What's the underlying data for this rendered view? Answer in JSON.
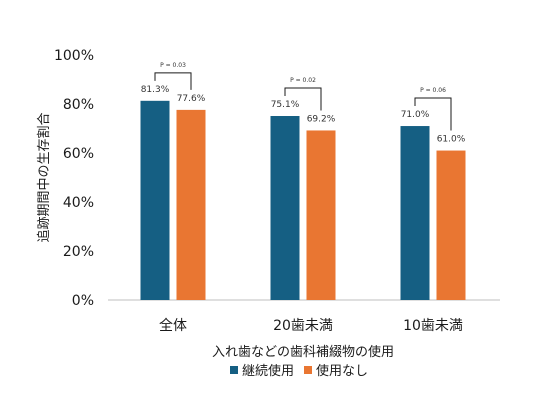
{
  "chart_data": {
    "type": "bar",
    "ylabel": "追跡期間中の生存割合",
    "xlabel": "入れ歯などの歯科補綴物の使用",
    "ylim": [
      0,
      100
    ],
    "y_ticks": [
      "0%",
      "20%",
      "40%",
      "60%",
      "80%",
      "100%"
    ],
    "y_tick_values": [
      0,
      20,
      40,
      60,
      80,
      100
    ],
    "categories": [
      "全体",
      "20歯未満",
      "10歯未満"
    ],
    "series": [
      {
        "name": "継続使用",
        "color": "#155f83",
        "values": [
          81.3,
          75.1,
          71.0
        ],
        "labels": [
          "81.3%",
          "75.1%",
          "71.0%"
        ]
      },
      {
        "name": "使用なし",
        "color": "#e97632",
        "values": [
          77.6,
          69.2,
          61.0
        ],
        "labels": [
          "77.6%",
          "69.2%",
          "61.0%"
        ]
      }
    ],
    "annotations": [
      "P = 0.03",
      "P = 0.02",
      "P = 0.06"
    ],
    "legend_position": "bottom",
    "grid": false
  }
}
